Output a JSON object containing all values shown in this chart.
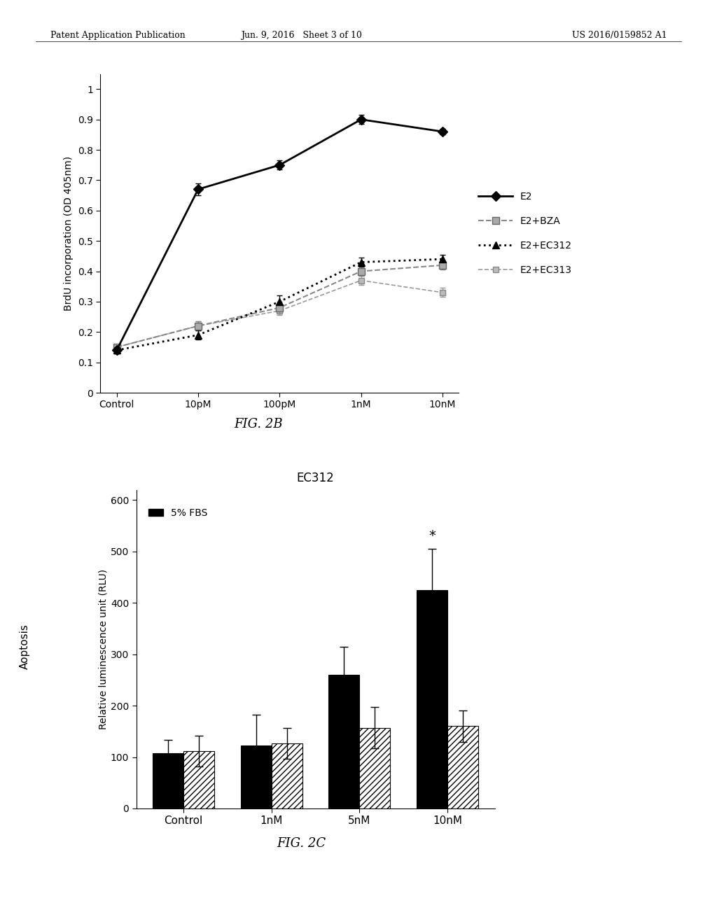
{
  "header_left": "Patent Application Publication",
  "header_mid": "Jun. 9, 2016   Sheet 3 of 10",
  "header_right": "US 2016/0159852 A1",
  "fig2b": {
    "ylabel": "BrdU incorporation (OD 405nm)",
    "fig_label": "FIG. 2B",
    "xtick_labels": [
      "Control",
      "10pM",
      "100pM",
      "1nM",
      "10nM"
    ],
    "ytick_vals": [
      0,
      0.1,
      0.2,
      0.3,
      0.4,
      0.5,
      0.6,
      0.7,
      0.8,
      0.9,
      1
    ],
    "ylim": [
      0,
      1.05
    ],
    "series": {
      "E2": {
        "y": [
          0.14,
          0.67,
          0.75,
          0.9,
          0.86
        ],
        "yerr": [
          0.01,
          0.02,
          0.015,
          0.015,
          0.01
        ]
      },
      "E2+BZA": {
        "y": [
          0.15,
          0.22,
          0.28,
          0.4,
          0.42
        ],
        "yerr": [
          0.01,
          0.015,
          0.02,
          0.015,
          0.015
        ]
      },
      "E2+EC312": {
        "y": [
          0.14,
          0.19,
          0.3,
          0.43,
          0.44
        ],
        "yerr": [
          0.01,
          0.015,
          0.02,
          0.015,
          0.015
        ]
      },
      "E2+EC313": {
        "y": [
          0.15,
          0.22,
          0.27,
          0.37,
          0.33
        ],
        "yerr": [
          0.01,
          0.015,
          0.015,
          0.015,
          0.015
        ]
      }
    }
  },
  "fig2c": {
    "title": "EC312",
    "ylabel_combined": "Aoptosis\nRelative luminescence unit (RLU)",
    "fig_label": "FIG. 2C",
    "xtick_labels": [
      "Control",
      "1nM",
      "5nM",
      "10nM"
    ],
    "ylim": [
      0,
      620
    ],
    "ytick_vals": [
      0,
      100,
      200,
      300,
      400,
      500,
      600
    ],
    "bar_width": 0.35,
    "legend_label_solid": "5% FBS",
    "groups": [
      "Control",
      "1nM",
      "5nM",
      "10nM"
    ],
    "solid_vals": [
      108,
      122,
      260,
      425
    ],
    "solid_errs": [
      25,
      60,
      55,
      80
    ],
    "hatch_vals": [
      112,
      126,
      157,
      160
    ],
    "hatch_errs": [
      30,
      30,
      40,
      30
    ],
    "star_group": "10nM",
    "hatch_pattern": "////"
  }
}
